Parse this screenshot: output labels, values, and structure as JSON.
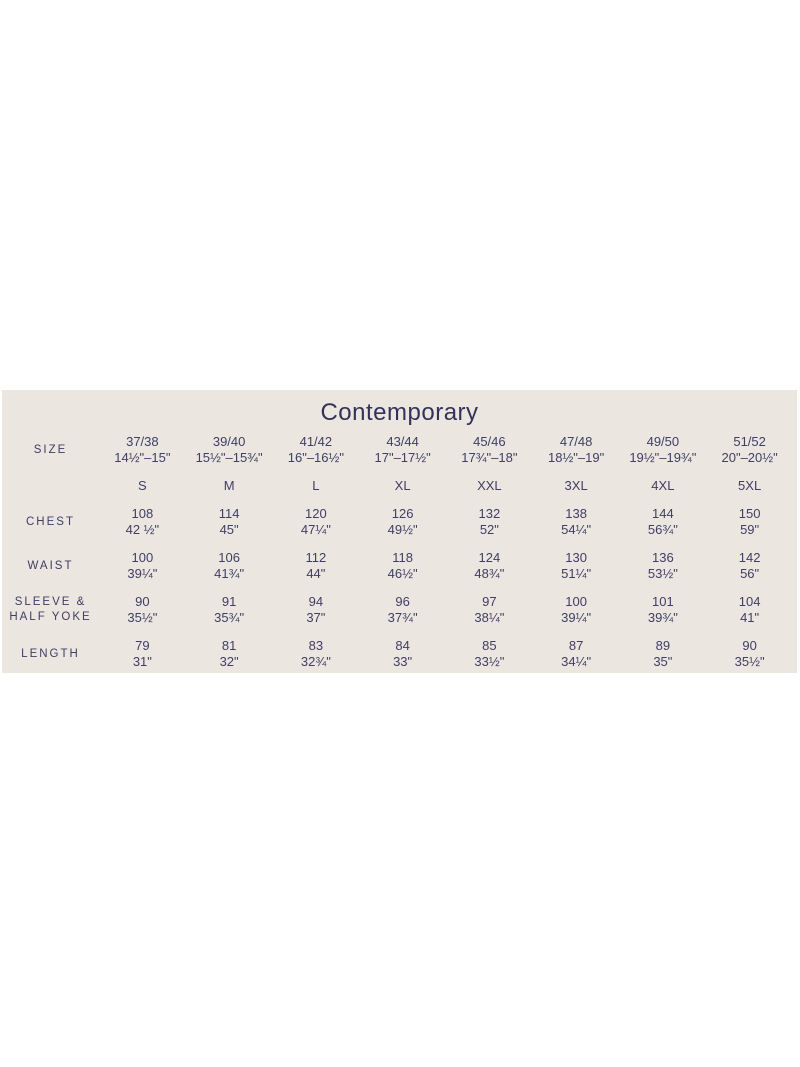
{
  "title": "Contemporary",
  "colors": {
    "panel_bg": "#ebe6e0",
    "text_navy": "#3f3e63",
    "title_navy": "#343259",
    "page_bg": "#ffffff"
  },
  "table": {
    "size_label": "SIZE",
    "row_labels": {
      "chest": "CHEST",
      "waist": "WAIST",
      "sleeve_line1": "SLEEVE &",
      "sleeve_line2": "HALF YOKE",
      "length": "LENGTH"
    },
    "columns": [
      {
        "size": "37/38",
        "collar": "14½\"–15\"",
        "letter": "S",
        "chest": {
          "cm": "108",
          "in": "42 ½\""
        },
        "waist": {
          "cm": "100",
          "in": "39¼\""
        },
        "sleeve": {
          "cm": "90",
          "in": "35½\""
        },
        "length": {
          "cm": "79",
          "in": "31\""
        }
      },
      {
        "size": "39/40",
        "collar": "15½\"–15¾\"",
        "letter": "M",
        "chest": {
          "cm": "114",
          "in": "45\""
        },
        "waist": {
          "cm": "106",
          "in": "41¾\""
        },
        "sleeve": {
          "cm": "91",
          "in": "35¾\""
        },
        "length": {
          "cm": "81",
          "in": "32\""
        }
      },
      {
        "size": "41/42",
        "collar": "16\"–16½\"",
        "letter": "L",
        "chest": {
          "cm": "120",
          "in": "47¼\""
        },
        "waist": {
          "cm": "112",
          "in": "44\""
        },
        "sleeve": {
          "cm": "94",
          "in": "37\""
        },
        "length": {
          "cm": "83",
          "in": "32¾\""
        }
      },
      {
        "size": "43/44",
        "collar": "17\"–17½\"",
        "letter": "XL",
        "chest": {
          "cm": "126",
          "in": "49½\""
        },
        "waist": {
          "cm": "118",
          "in": "46½\""
        },
        "sleeve": {
          "cm": "96",
          "in": "37¾\""
        },
        "length": {
          "cm": "84",
          "in": "33\""
        }
      },
      {
        "size": "45/46",
        "collar": "17¾\"–18\"",
        "letter": "XXL",
        "chest": {
          "cm": "132",
          "in": "52\""
        },
        "waist": {
          "cm": "124",
          "in": "48¾\""
        },
        "sleeve": {
          "cm": "97",
          "in": "38¼\""
        },
        "length": {
          "cm": "85",
          "in": "33½\""
        }
      },
      {
        "size": "47/48",
        "collar": "18½\"–19\"",
        "letter": "3XL",
        "chest": {
          "cm": "138",
          "in": "54¼\""
        },
        "waist": {
          "cm": "130",
          "in": "51¼\""
        },
        "sleeve": {
          "cm": "100",
          "in": "39¼\""
        },
        "length": {
          "cm": "87",
          "in": "34¼\""
        }
      },
      {
        "size": "49/50",
        "collar": "19½\"–19¾\"",
        "letter": "4XL",
        "chest": {
          "cm": "144",
          "in": "56¾\""
        },
        "waist": {
          "cm": "136",
          "in": "53½\""
        },
        "sleeve": {
          "cm": "101",
          "in": "39¾\""
        },
        "length": {
          "cm": "89",
          "in": "35\""
        }
      },
      {
        "size": "51/52",
        "collar": "20\"–20½\"",
        "letter": "5XL",
        "chest": {
          "cm": "150",
          "in": "59\""
        },
        "waist": {
          "cm": "142",
          "in": "56\""
        },
        "sleeve": {
          "cm": "104",
          "in": "41\""
        },
        "length": {
          "cm": "90",
          "in": "35½\""
        }
      }
    ]
  }
}
